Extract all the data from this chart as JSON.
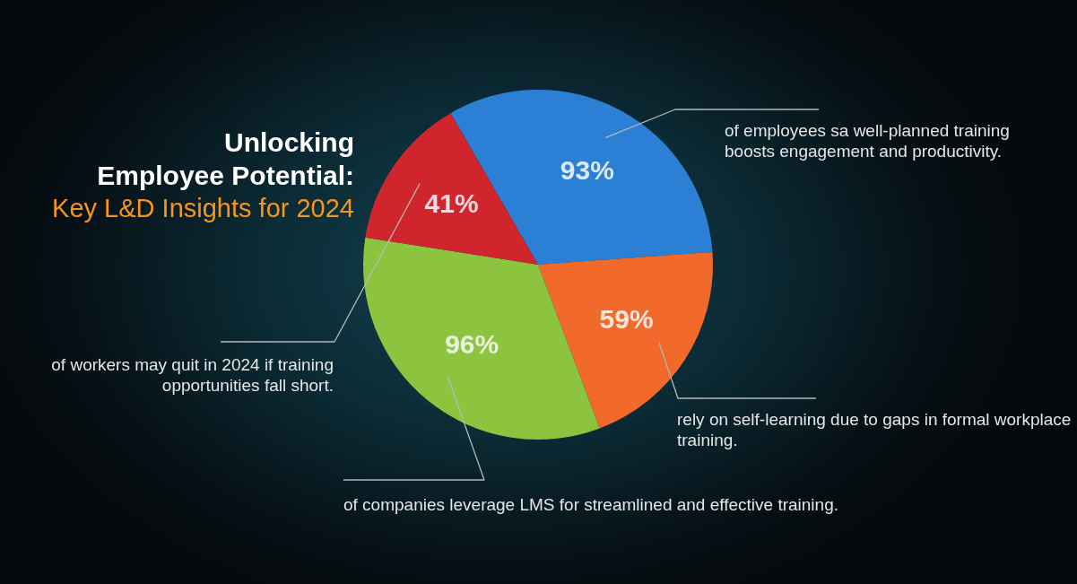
{
  "chart_data": {
    "type": "pie",
    "title": "Unlocking Employee Potential:",
    "subtitle": "Key L&D Insights for 2024",
    "categories": [
      "of employees sa well-planned training boosts engagement and productivity.",
      "rely on self-learning due to gaps in formal workplace training.",
      "of companies leverage LMS for streamlined and effective training.",
      "of workers may quit in 2024 if training opportunities fall short."
    ],
    "values": [
      93,
      59,
      96,
      41
    ],
    "value_labels": [
      "93%",
      "59%",
      "96%",
      "41%"
    ],
    "colors": [
      "#2b7fd4",
      "#f26a2b",
      "#8cc43f",
      "#d1252d"
    ]
  }
}
